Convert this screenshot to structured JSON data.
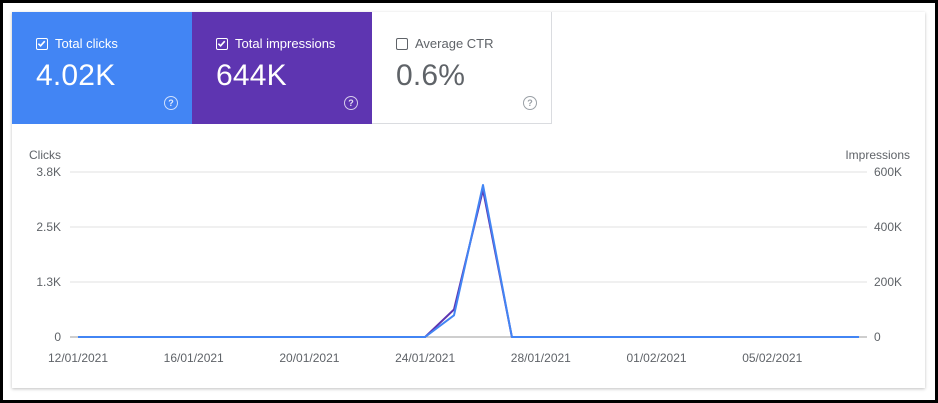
{
  "metrics": [
    {
      "label": "Total clicks",
      "value": "4.02K",
      "checked": true,
      "color": "#4285f4"
    },
    {
      "label": "Total impressions",
      "value": "644K",
      "checked": true,
      "color": "#5e35b1"
    },
    {
      "label": "Average CTR",
      "value": "0.6%",
      "checked": false,
      "color": "#ffffff"
    }
  ],
  "help_icon_glyph": "?",
  "chart_data": {
    "type": "line",
    "left_axis_title": "Clicks",
    "right_axis_title": "Impressions",
    "left_ticks": [
      "3.8K",
      "2.5K",
      "1.3K",
      "0"
    ],
    "right_ticks": [
      "600K",
      "400K",
      "200K",
      "0"
    ],
    "left_ylim": [
      0,
      3800
    ],
    "right_ylim": [
      0,
      600000
    ],
    "x_tick_labels": [
      "12/01/2021",
      "16/01/2021",
      "20/01/2021",
      "24/01/2021",
      "28/01/2021",
      "01/02/2021",
      "05/02/2021"
    ],
    "x": [
      "12/01/2021",
      "13/01/2021",
      "14/01/2021",
      "15/01/2021",
      "16/01/2021",
      "17/01/2021",
      "18/01/2021",
      "19/01/2021",
      "20/01/2021",
      "21/01/2021",
      "22/01/2021",
      "23/01/2021",
      "24/01/2021",
      "25/01/2021",
      "26/01/2021",
      "27/01/2021",
      "28/01/2021",
      "29/01/2021",
      "30/01/2021",
      "31/01/2021",
      "01/02/2021",
      "02/02/2021",
      "03/02/2021",
      "04/02/2021",
      "05/02/2021",
      "06/02/2021",
      "07/02/2021",
      "08/02/2021"
    ],
    "series": [
      {
        "name": "Clicks",
        "axis": "left",
        "color": "#4285f4",
        "values": [
          0,
          0,
          0,
          0,
          0,
          0,
          0,
          0,
          0,
          0,
          0,
          0,
          0,
          500,
          3500,
          0,
          0,
          0,
          0,
          0,
          0,
          0,
          0,
          0,
          0,
          0,
          0,
          0
        ]
      },
      {
        "name": "Impressions",
        "axis": "right",
        "color": "#5e35b1",
        "values": [
          0,
          0,
          0,
          0,
          0,
          0,
          0,
          0,
          0,
          0,
          0,
          0,
          0,
          100000,
          535000,
          0,
          0,
          0,
          0,
          0,
          0,
          0,
          0,
          0,
          0,
          0,
          0,
          0
        ]
      }
    ],
    "grid": true
  }
}
